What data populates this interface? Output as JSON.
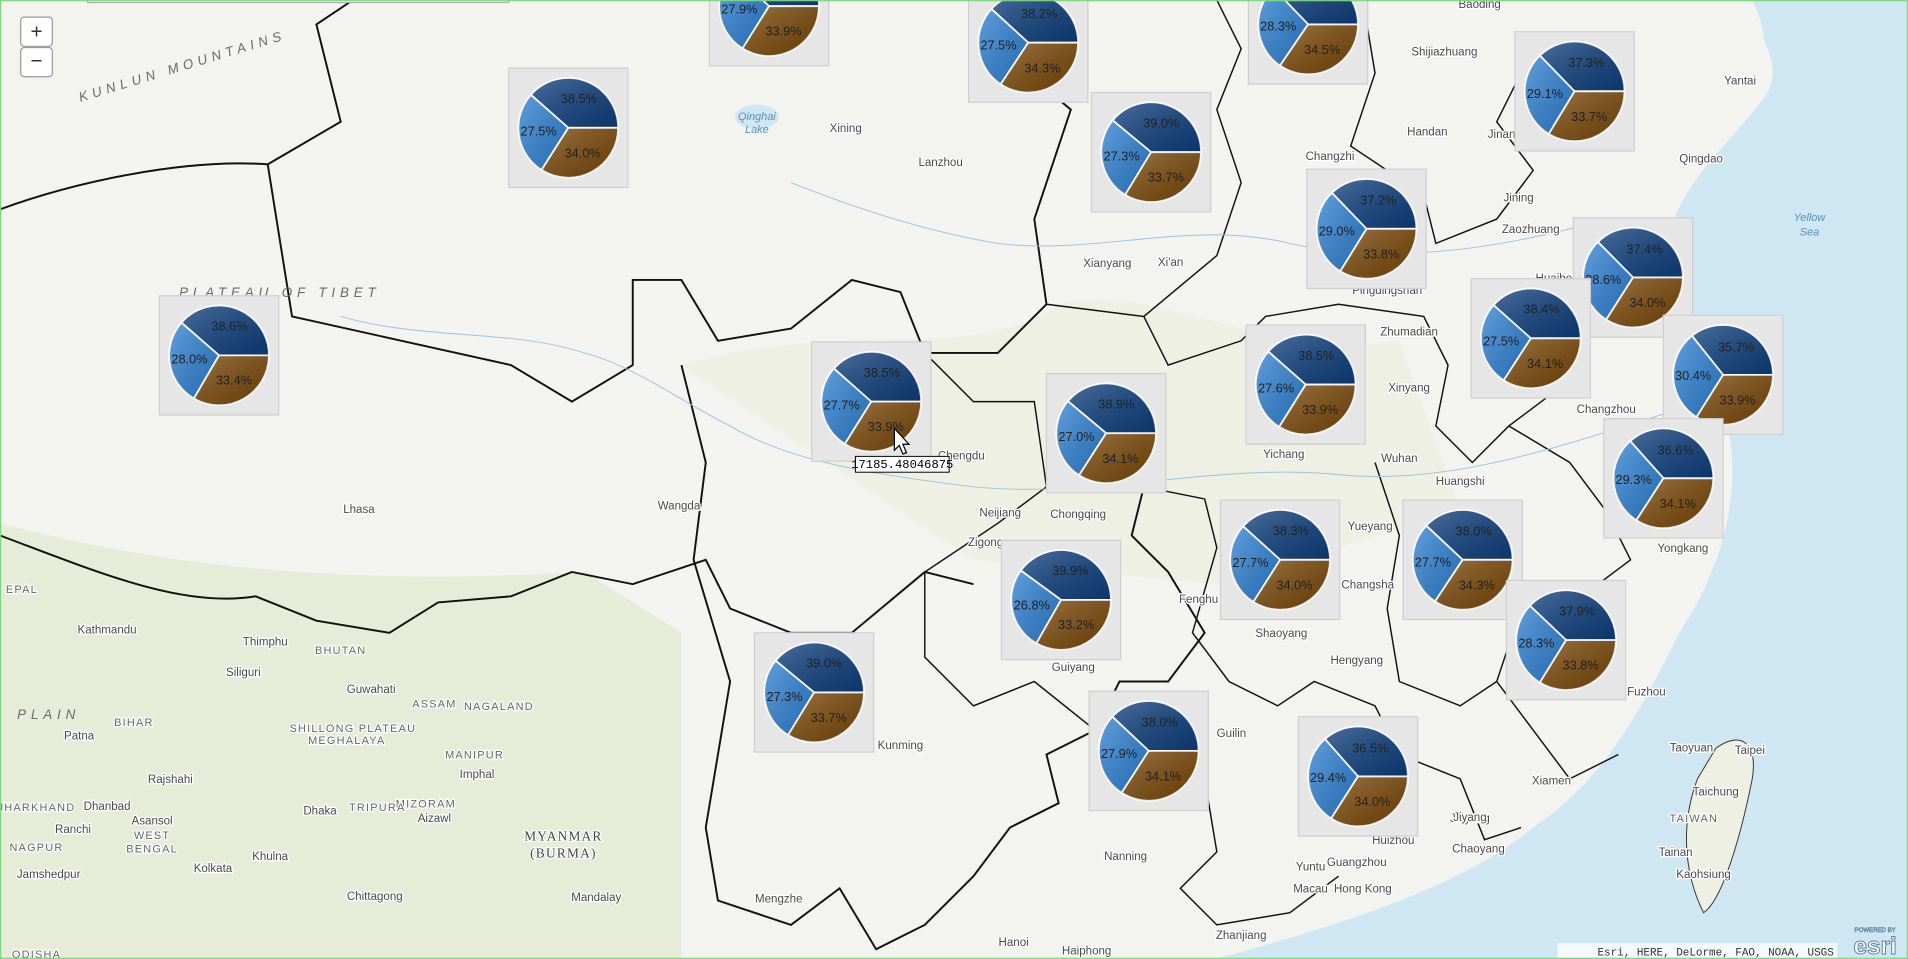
{
  "map": {
    "zoom_in": "+",
    "zoom_out": "−",
    "tooltip": "17185.48046875",
    "attribution": "Esri, HERE, DeLorme, FAO, NOAA, USGS",
    "logo_caption": "POWERED BY",
    "logo": "esri",
    "labels": [
      "Baoding",
      "Shijiazhuang",
      "Yantai",
      "Xining",
      "Lanzhou",
      "Handan",
      "Jinan",
      "Qingdao",
      "Changzhi",
      "Jining",
      "Zaozhuang",
      "Yellow",
      "Sea",
      "Xianyang",
      "Xi'an",
      "Pingdingshan",
      "Huaibei",
      "Zhumadian",
      "Xinyang",
      "Changzhou",
      "Chengdu",
      "Yichang",
      "Wuhan",
      "Huangshi",
      "Neijiang",
      "Chongqing",
      "Zigong",
      "Yueyang",
      "Changsha",
      "Yongkang",
      "Lhasa",
      "Wangda",
      "Shaoyang",
      "Hengyang",
      "Guiyang",
      "Fuzhou",
      "Kathmandu",
      "Thimphu",
      "BHUTAN",
      "Siliguri",
      "Guwahati",
      "ASSAM",
      "NAGALAND",
      "Patna",
      "BIHAR",
      "SHILLONG PLATEAU",
      "MEGHALAYA",
      "Kunming",
      "Guilin",
      "Taoyuan",
      "Taipei",
      "Xiamen",
      "Taichung",
      "Rajshahi",
      "MANIPUR",
      "Imphal",
      "Dhaka",
      "Dhanbad",
      "Asansol",
      "Aizawl",
      "MIZORAM",
      "Ranchi",
      "WEST",
      "BENGAL",
      "MYANMAR",
      "(BURMA)",
      "Nanning",
      "Jieyang",
      "Chaoyang",
      "Huizhou",
      "Guangzhou",
      "TAIWAN",
      "Tainan",
      "Kaohsiung",
      "Kolkata",
      "Khulna",
      "Jamshedpur",
      "Chittagong",
      "Mandalay",
      "Mengzhe",
      "Macau",
      "Hong Kong",
      "Hanoi",
      "Haiphong",
      "Zhanjiang",
      "PLATEAU OF TIBET",
      "KUNLUN MOUNTAINS",
      "PLAIN",
      "EPAL",
      "Qinghai",
      "Lake",
      "NAGPUR",
      "JHARKHAND",
      "ODISHA",
      "TRIPURA",
      "Fenghu",
      "Jiyang",
      "Yuntu"
    ]
  },
  "chart_data": [
    {
      "type": "pie",
      "values": [
        38.2,
        27.9,
        33.9
      ],
      "value_labels": [
        null,
        "27.9%",
        "33.9%"
      ],
      "colors": [
        "#0e3f7e",
        "#2f82d4",
        "#7a4808"
      ]
    },
    {
      "type": "pie",
      "values": [
        38.2,
        27.5,
        34.3
      ],
      "value_labels": [
        "38.2%",
        "27.5%",
        "34.3%"
      ],
      "colors": [
        "#0e3f7e",
        "#2f82d4",
        "#7a4808"
      ]
    },
    {
      "type": "pie",
      "values": [
        37.2,
        28.3,
        34.5
      ],
      "value_labels": [
        null,
        "28.3%",
        "34.5%"
      ],
      "colors": [
        "#0e3f7e",
        "#2f82d4",
        "#7a4808"
      ]
    },
    {
      "type": "pie",
      "values": [
        37.3,
        29.1,
        33.7
      ],
      "value_labels": [
        "37.3%",
        "29.1%",
        "33.7%"
      ],
      "colors": [
        "#0e3f7e",
        "#2f82d4",
        "#7a4808"
      ]
    },
    {
      "type": "pie",
      "values": [
        38.5,
        27.5,
        34.0
      ],
      "value_labels": [
        "38.5%",
        "27.5%",
        "34.0%"
      ],
      "colors": [
        "#0e3f7e",
        "#2f82d4",
        "#7a4808"
      ]
    },
    {
      "type": "pie",
      "values": [
        39.0,
        27.3,
        33.7
      ],
      "value_labels": [
        "39.0%",
        "27.3%",
        "33.7%"
      ],
      "colors": [
        "#0e3f7e",
        "#2f82d4",
        "#7a4808"
      ]
    },
    {
      "type": "pie",
      "values": [
        37.2,
        29.0,
        33.8
      ],
      "value_labels": [
        "37.2%",
        "29.0%",
        "33.8%"
      ],
      "colors": [
        "#0e3f7e",
        "#2f82d4",
        "#7a4808"
      ]
    },
    {
      "type": "pie",
      "values": [
        37.4,
        28.6,
        34.0
      ],
      "value_labels": [
        "37.4%",
        "28.6%",
        "34.0%"
      ],
      "colors": [
        "#0e3f7e",
        "#2f82d4",
        "#7a4808"
      ]
    },
    {
      "type": "pie",
      "values": [
        38.6,
        28.0,
        33.4
      ],
      "value_labels": [
        "38.6%",
        "28.0%",
        "33.4%"
      ],
      "colors": [
        "#0e3f7e",
        "#2f82d4",
        "#7a4808"
      ]
    },
    {
      "type": "pie",
      "values": [
        38.5,
        27.7,
        33.9
      ],
      "value_labels": [
        "38.5%",
        "27.7%",
        "33.9%"
      ],
      "colors": [
        "#0e3f7e",
        "#2f82d4",
        "#7a4808"
      ]
    },
    {
      "type": "pie",
      "values": [
        38.4,
        27.5,
        34.1
      ],
      "value_labels": [
        "38.4%",
        "27.5%",
        "34.1%"
      ],
      "colors": [
        "#0e3f7e",
        "#2f82d4",
        "#7a4808"
      ]
    },
    {
      "type": "pie",
      "values": [
        35.7,
        30.4,
        33.9
      ],
      "value_labels": [
        "35.7%",
        "30.4%",
        "33.9%"
      ],
      "colors": [
        "#0e3f7e",
        "#2f82d4",
        "#7a4808"
      ]
    },
    {
      "type": "pie",
      "values": [
        38.5,
        27.6,
        33.9
      ],
      "value_labels": [
        "38.5%",
        "27.6%",
        "33.9%"
      ],
      "colors": [
        "#0e3f7e",
        "#2f82d4",
        "#7a4808"
      ]
    },
    {
      "type": "pie",
      "values": [
        38.9,
        27.0,
        34.1
      ],
      "value_labels": [
        "38.9%",
        "27.0%",
        "34.1%"
      ],
      "colors": [
        "#0e3f7e",
        "#2f82d4",
        "#7a4808"
      ]
    },
    {
      "type": "pie",
      "values": [
        36.6,
        29.3,
        34.1
      ],
      "value_labels": [
        "36.6%",
        "29.3%",
        "34.1%"
      ],
      "colors": [
        "#0e3f7e",
        "#2f82d4",
        "#7a4808"
      ]
    },
    {
      "type": "pie",
      "values": [
        38.3,
        27.7,
        34.0
      ],
      "value_labels": [
        "38.3%",
        "27.7%",
        "34.0%"
      ],
      "colors": [
        "#0e3f7e",
        "#2f82d4",
        "#7a4808"
      ]
    },
    {
      "type": "pie",
      "values": [
        38.0,
        27.7,
        34.3
      ],
      "value_labels": [
        "38.0%",
        "27.7%",
        "34.3%"
      ],
      "colors": [
        "#0e3f7e",
        "#2f82d4",
        "#7a4808"
      ]
    },
    {
      "type": "pie",
      "values": [
        39.9,
        26.8,
        33.2
      ],
      "value_labels": [
        "39.9%",
        "26.8%",
        "33.2%"
      ],
      "colors": [
        "#0e3f7e",
        "#2f82d4",
        "#7a4808"
      ]
    },
    {
      "type": "pie",
      "values": [
        37.9,
        28.3,
        33.8
      ],
      "value_labels": [
        "37.9%",
        "28.3%",
        "33.8%"
      ],
      "colors": [
        "#0e3f7e",
        "#2f82d4",
        "#7a4808"
      ]
    },
    {
      "type": "pie",
      "values": [
        39.0,
        27.3,
        33.7
      ],
      "value_labels": [
        "39.0%",
        "27.3%",
        "33.7%"
      ],
      "colors": [
        "#0e3f7e",
        "#2f82d4",
        "#7a4808"
      ]
    },
    {
      "type": "pie",
      "values": [
        38.0,
        27.9,
        34.1
      ],
      "value_labels": [
        "38.0%",
        "27.9%",
        "34.1%"
      ],
      "colors": [
        "#0e3f7e",
        "#2f82d4",
        "#7a4808"
      ]
    },
    {
      "type": "pie",
      "values": [
        36.5,
        29.4,
        34.0
      ],
      "value_labels": [
        "36.5%",
        "29.4%",
        "34.0%"
      ],
      "colors": [
        "#0e3f7e",
        "#2f82d4",
        "#7a4808"
      ]
    }
  ]
}
